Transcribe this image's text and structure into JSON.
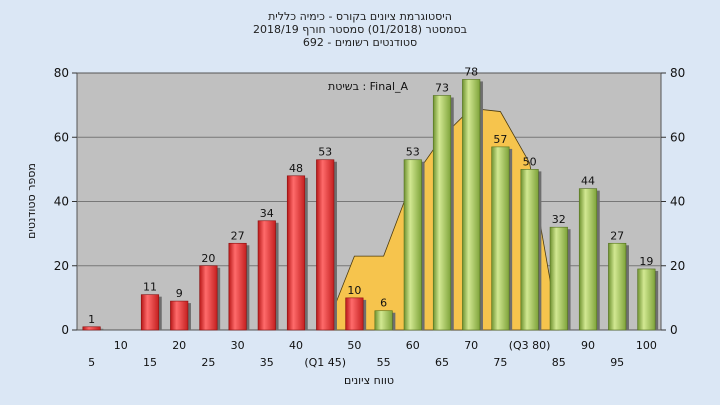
{
  "chart_data": {
    "type": "bar",
    "title_lines": [
      "היסטוגרמת ציונים בקורס - כימיה כללית",
      "בסמסטר  (01/2018)  סמסטר חורף 2018/19",
      "סטודנטים רשומים - 692"
    ],
    "legend_text": "בשיטת : Final_A",
    "xlabel": "טווח ציונים",
    "ylabel": "מספר סטודנטים",
    "ylim": [
      0,
      80
    ],
    "yticks": [
      0,
      20,
      40,
      60,
      80
    ],
    "categories": [
      "5",
      "10",
      "15",
      "20",
      "25",
      "30",
      "35",
      "40",
      "(Q1 45)",
      "50",
      "55",
      "60",
      "65",
      "70",
      "75",
      "(Q3 80)",
      "85",
      "90",
      "95",
      "100"
    ],
    "values": [
      1,
      0,
      11,
      9,
      20,
      27,
      34,
      48,
      53,
      10,
      6,
      53,
      73,
      78,
      57,
      50,
      32,
      44,
      27,
      19
    ],
    "value_labels": [
      "1",
      "",
      "11",
      "9",
      "20",
      "27",
      "34",
      "48",
      "53",
      "10",
      "6",
      "53",
      "73",
      "78",
      "57",
      "50",
      "32",
      "44",
      "27",
      "19"
    ],
    "bar_colors": [
      "red",
      "red",
      "red",
      "red",
      "red",
      "red",
      "red",
      "red",
      "red",
      "red",
      "green",
      "green",
      "green",
      "green",
      "green",
      "green",
      "green",
      "green",
      "green",
      "green"
    ],
    "colors": {
      "red": "#e53333",
      "green": "#a8c95c",
      "area": "#f6c44d",
      "plot_bg": "#c0c0c0",
      "page_bg": "#dbe7f5"
    },
    "area_series": [
      {
        "x": "50",
        "value": 23
      },
      {
        "x": "55",
        "value": 23
      },
      {
        "x": "60",
        "value": 47
      },
      {
        "x": "65",
        "value": 60
      },
      {
        "x": "70",
        "value": 69
      },
      {
        "x": "75",
        "value": 68
      },
      {
        "x": "(Q3 80)",
        "value": 52
      }
    ]
  }
}
